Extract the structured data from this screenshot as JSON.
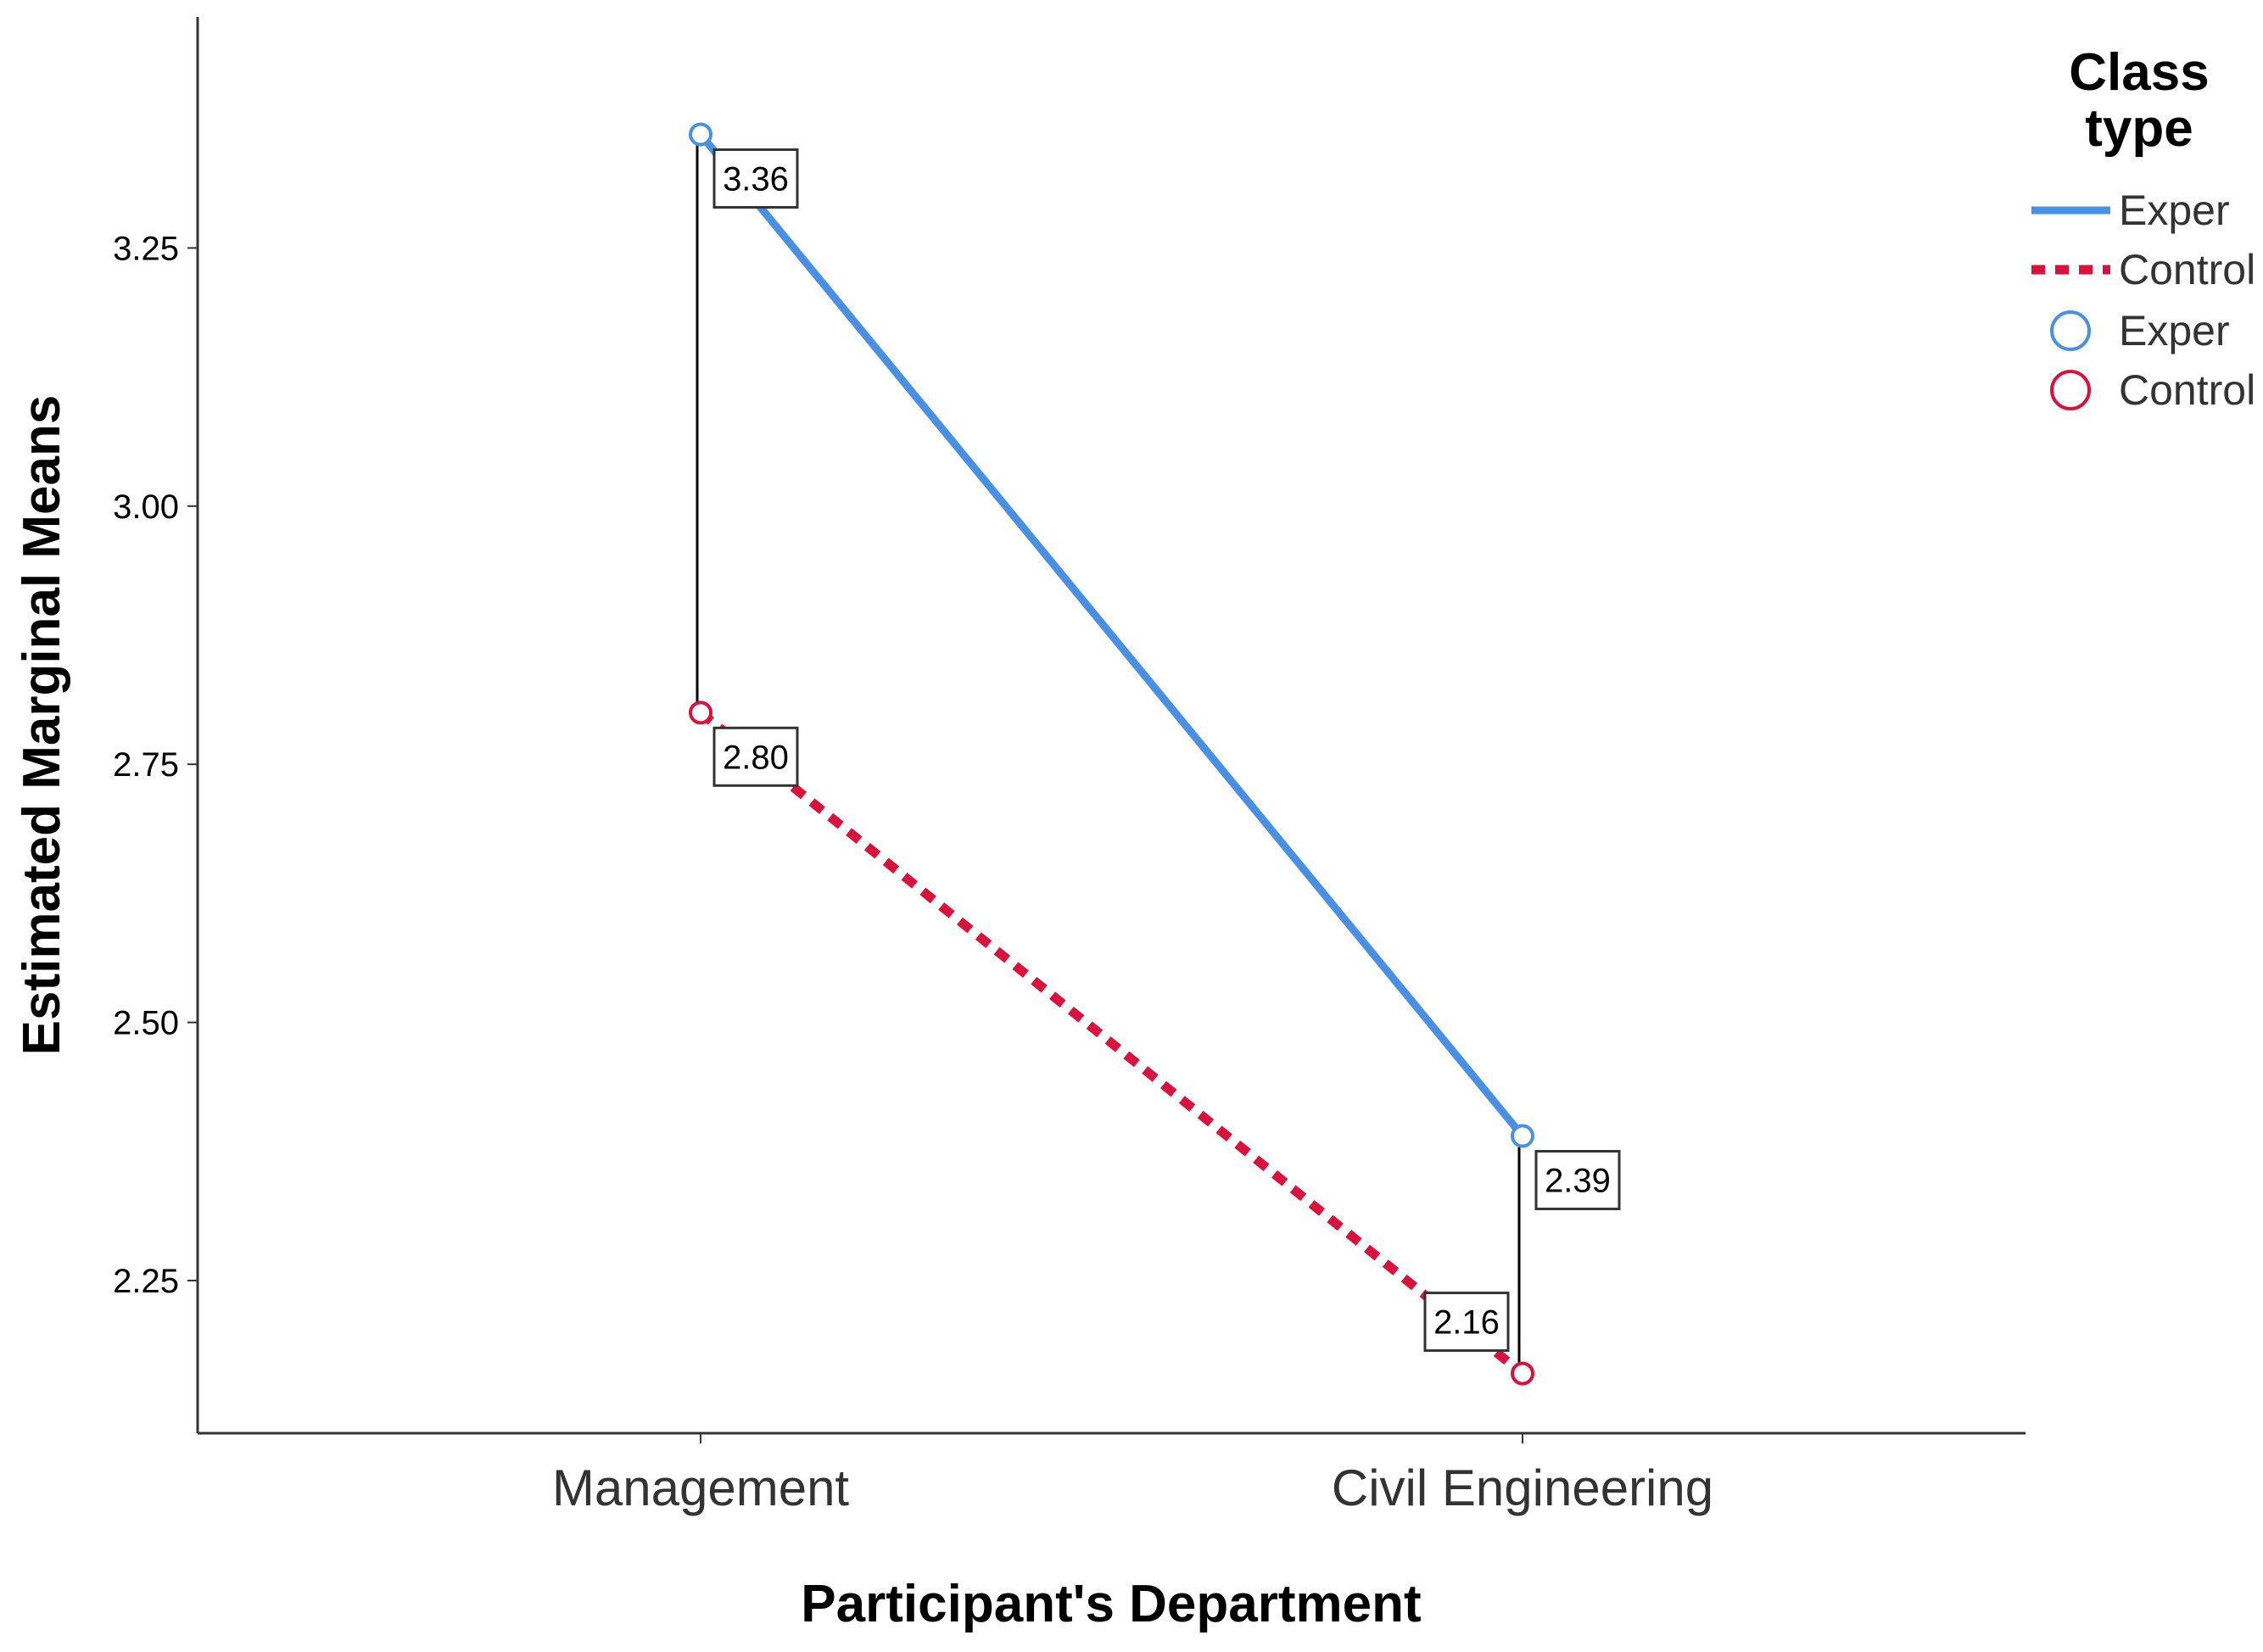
{
  "chart_data": {
    "type": "line",
    "title": "",
    "xlabel": "Participant's Department",
    "ylabel": "Estimated Marginal Means",
    "categories": [
      "Management",
      "Civil Engineering"
    ],
    "series": [
      {
        "name": "Exper",
        "values": [
          3.36,
          2.39
        ],
        "color": "#4a90e2",
        "line_style": "solid",
        "marker": "open-circle"
      },
      {
        "name": "Control",
        "values": [
          2.8,
          2.16
        ],
        "color": "#d8123c",
        "line_style": "dotted",
        "marker": "open-circle"
      }
    ],
    "data_labels": [
      [
        "3.36",
        "2.39"
      ],
      [
        "2.80",
        "2.16"
      ]
    ],
    "yticks": [
      2.25,
      2.5,
      2.75,
      3.0,
      3.25
    ],
    "ytick_labels": [
      "2.25",
      "2.50",
      "2.75",
      "3.00",
      "3.25"
    ],
    "ylim": [
      2.11,
      3.48
    ],
    "grid": false,
    "legend": {
      "title": "Class type",
      "title_lines": [
        "Class",
        "type"
      ],
      "position": "right",
      "line_entries": [
        "Exper",
        "Control"
      ],
      "marker_entries": [
        "Exper",
        "Control"
      ]
    },
    "drop_lines": true
  }
}
